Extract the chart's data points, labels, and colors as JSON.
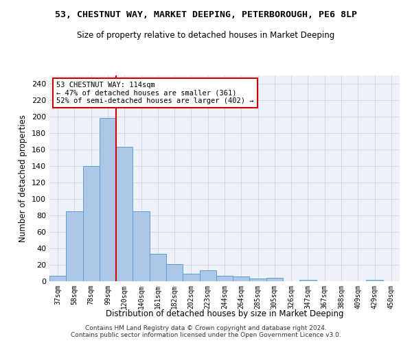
{
  "title": "53, CHESTNUT WAY, MARKET DEEPING, PETERBOROUGH, PE6 8LP",
  "subtitle": "Size of property relative to detached houses in Market Deeping",
  "xlabel": "Distribution of detached houses by size in Market Deeping",
  "ylabel": "Number of detached properties",
  "categories": [
    "37sqm",
    "58sqm",
    "78sqm",
    "99sqm",
    "120sqm",
    "140sqm",
    "161sqm",
    "182sqm",
    "202sqm",
    "223sqm",
    "244sqm",
    "264sqm",
    "285sqm",
    "305sqm",
    "326sqm",
    "347sqm",
    "367sqm",
    "388sqm",
    "409sqm",
    "429sqm",
    "450sqm"
  ],
  "values": [
    7,
    85,
    140,
    198,
    163,
    85,
    33,
    21,
    9,
    13,
    7,
    6,
    3,
    4,
    0,
    2,
    0,
    0,
    0,
    2,
    0
  ],
  "bar_color": "#aec6e8",
  "bar_edge_color": "#5a9fd4",
  "grid_color": "#d0d8e8",
  "background_color": "#eef2f8",
  "vline_color": "#cc0000",
  "annotation_text": "53 CHESTNUT WAY: 114sqm\n← 47% of detached houses are smaller (361)\n52% of semi-detached houses are larger (402) →",
  "annotation_box_color": "#ffffff",
  "annotation_box_edge": "#cc0000",
  "ylim": [
    0,
    250
  ],
  "yticks": [
    0,
    20,
    40,
    60,
    80,
    100,
    120,
    140,
    160,
    180,
    200,
    220,
    240
  ],
  "footer1": "Contains HM Land Registry data © Crown copyright and database right 2024.",
  "footer2": "Contains public sector information licensed under the Open Government Licence v3.0."
}
